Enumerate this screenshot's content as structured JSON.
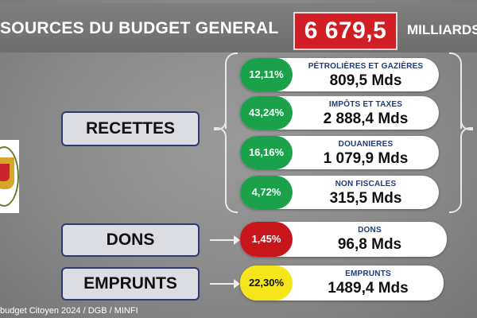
{
  "header": {
    "title": "SOURCES  DU BUDGET GENERAL",
    "total": "6 679,5",
    "unit": "MILLIARDS"
  },
  "categories": {
    "recettes": "RECETTES",
    "dons": "DONS",
    "emprunts": "EMPRUNTS"
  },
  "items": [
    {
      "percent": "12,11%",
      "label": "PÉTROLIÈRES ET GAZIÈRES",
      "amount": "809,5 Mds",
      "color": "#1aa14a"
    },
    {
      "percent": "43,24%",
      "label": "IMPÔTS ET TAXES",
      "amount": "2 888,4 Mds",
      "color": "#1aa14a"
    },
    {
      "percent": "16,16%",
      "label": "DOUANIERES",
      "amount": "1 079,9 Mds",
      "color": "#1aa14a"
    },
    {
      "percent": "4,72%",
      "label": "NON FISCALES",
      "amount": "315,5 Mds",
      "color": "#1aa14a"
    },
    {
      "percent": "1,45%",
      "label": "DONS",
      "amount": "96,8 Mds",
      "color": "#c8141b"
    },
    {
      "percent": "22,30%",
      "label": "EMPRUNTS",
      "amount": "1489,4 Mds",
      "color": "#f5e61c"
    }
  ],
  "footer": "budget Citoyen 2024 / DGB / MINFI"
}
